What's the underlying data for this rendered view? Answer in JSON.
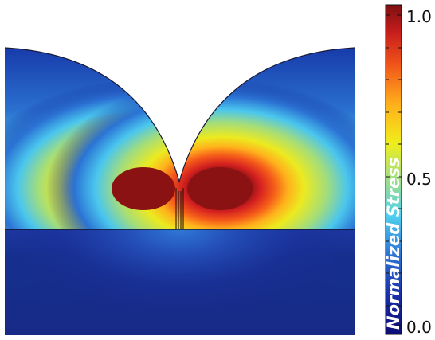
{
  "chart_data": {
    "type": "heatmap",
    "title": "",
    "colorbar": {
      "label": "Normalized Stress",
      "range": [
        0.0,
        1.0
      ],
      "tick_labels": [
        "1.0",
        "0.5",
        "0.0"
      ],
      "tick_values": [
        1.0,
        0.5,
        0.0
      ],
      "colormap": "jet",
      "position": "right"
    },
    "field": {
      "description_values": {
        "max": 1.0,
        "min": 0.0,
        "lobe_peak": 1.0,
        "interface_region": 0.5,
        "lower_substrate": 0.0
      }
    }
  },
  "colors": {
    "background": "#ffffff",
    "colormap": [
      "#0b0d72",
      "#1535b0",
      "#2a7ad8",
      "#45c8ef",
      "#a6e07a",
      "#e6e619",
      "#ffb11c",
      "#f0551a",
      "#c81e1e",
      "#8b1212"
    ]
  }
}
